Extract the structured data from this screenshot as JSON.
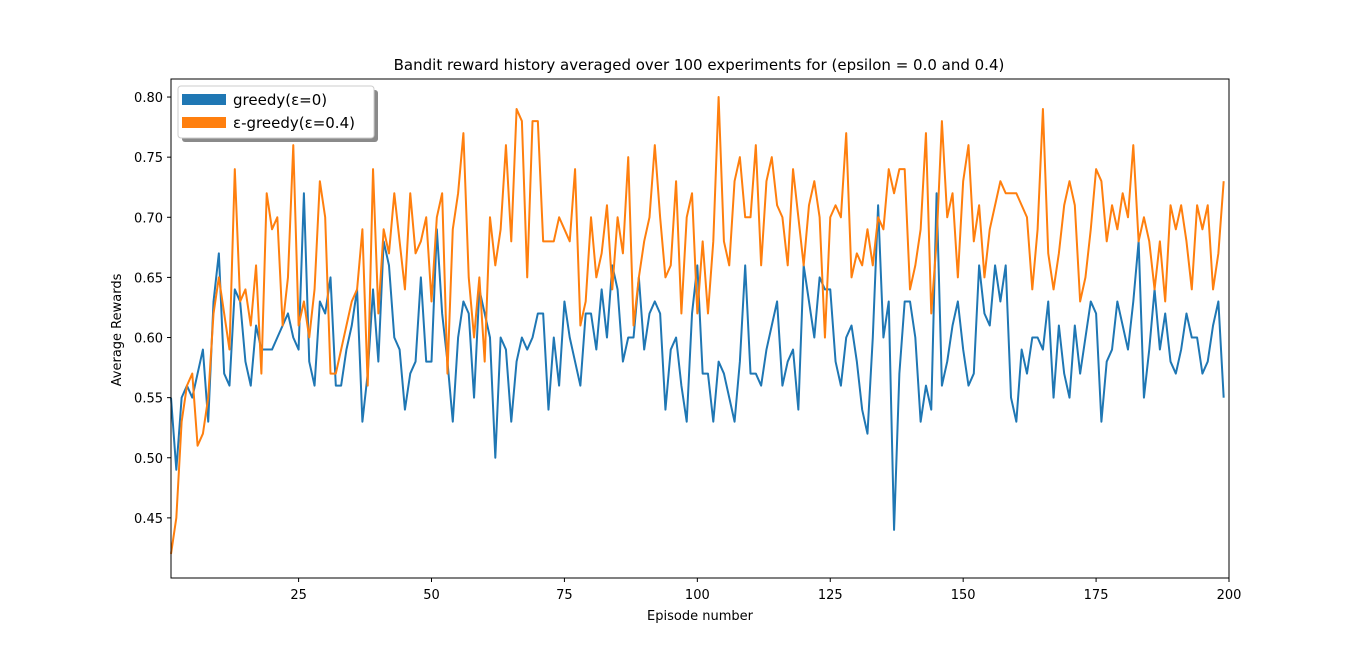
{
  "chart_data": {
    "type": "line",
    "title": "Bandit reward history averaged over 100 experiments for (epsilon = 0.0 and 0.4)",
    "xlabel": "Episode number",
    "ylabel": "Average Rewards",
    "xlim": [
      1,
      200
    ],
    "ylim": [
      0.4,
      0.815
    ],
    "xticks": [
      25,
      50,
      75,
      100,
      125,
      150,
      175,
      200
    ],
    "xtick_labels": [
      "25",
      "50",
      "75",
      "100",
      "125",
      "150",
      "175",
      "200"
    ],
    "yticks": [
      0.45,
      0.5,
      0.55,
      0.6,
      0.65,
      0.7,
      0.75,
      0.8
    ],
    "ytick_labels": [
      "0.45",
      "0.50",
      "0.55",
      "0.60",
      "0.65",
      "0.70",
      "0.75",
      "0.80"
    ],
    "grid": false,
    "legend_position": "top-left",
    "series": [
      {
        "name": "greedy(ε=0)",
        "color": "#1f77b4",
        "x_start": 1,
        "values": [
          0.55,
          0.49,
          0.55,
          0.56,
          0.55,
          0.57,
          0.59,
          0.53,
          0.63,
          0.67,
          0.57,
          0.56,
          0.64,
          0.63,
          0.58,
          0.56,
          0.61,
          0.59,
          0.59,
          0.59,
          0.6,
          0.61,
          0.62,
          0.6,
          0.59,
          0.72,
          0.58,
          0.56,
          0.63,
          0.62,
          0.65,
          0.56,
          0.56,
          0.59,
          0.61,
          0.64,
          0.53,
          0.57,
          0.64,
          0.58,
          0.68,
          0.66,
          0.6,
          0.59,
          0.54,
          0.57,
          0.58,
          0.65,
          0.58,
          0.58,
          0.69,
          0.62,
          0.58,
          0.53,
          0.6,
          0.63,
          0.62,
          0.55,
          0.64,
          0.62,
          0.6,
          0.5,
          0.6,
          0.59,
          0.53,
          0.58,
          0.6,
          0.59,
          0.6,
          0.62,
          0.62,
          0.54,
          0.6,
          0.56,
          0.63,
          0.6,
          0.58,
          0.56,
          0.62,
          0.62,
          0.59,
          0.64,
          0.6,
          0.66,
          0.64,
          0.58,
          0.6,
          0.6,
          0.65,
          0.59,
          0.62,
          0.63,
          0.62,
          0.54,
          0.59,
          0.6,
          0.56,
          0.53,
          0.62,
          0.66,
          0.57,
          0.57,
          0.53,
          0.58,
          0.57,
          0.55,
          0.53,
          0.58,
          0.66,
          0.57,
          0.57,
          0.56,
          0.59,
          0.61,
          0.63,
          0.56,
          0.58,
          0.59,
          0.54,
          0.66,
          0.63,
          0.6,
          0.65,
          0.64,
          0.64,
          0.58,
          0.56,
          0.6,
          0.61,
          0.58,
          0.54,
          0.52,
          0.6,
          0.71,
          0.6,
          0.63,
          0.44,
          0.57,
          0.63,
          0.63,
          0.6,
          0.53,
          0.56,
          0.54,
          0.72,
          0.56,
          0.58,
          0.61,
          0.63,
          0.59,
          0.56,
          0.57,
          0.66,
          0.62,
          0.61,
          0.66,
          0.63,
          0.66,
          0.55,
          0.53,
          0.59,
          0.57,
          0.6,
          0.6,
          0.59,
          0.63,
          0.55,
          0.61,
          0.57,
          0.55,
          0.61,
          0.57,
          0.6,
          0.63,
          0.62,
          0.53,
          0.58,
          0.59,
          0.63,
          0.61,
          0.59,
          0.63,
          0.68,
          0.55,
          0.59,
          0.64,
          0.59,
          0.62,
          0.58,
          0.57,
          0.59,
          0.62,
          0.6,
          0.6,
          0.57,
          0.58,
          0.61,
          0.63,
          0.55
        ]
      },
      {
        "name": "ε-greedy(ε=0.4)",
        "color": "#ff7f0e",
        "x_start": 1,
        "values": [
          0.42,
          0.45,
          0.53,
          0.56,
          0.57,
          0.51,
          0.52,
          0.55,
          0.62,
          0.65,
          0.62,
          0.59,
          0.74,
          0.63,
          0.64,
          0.61,
          0.66,
          0.57,
          0.72,
          0.69,
          0.7,
          0.61,
          0.65,
          0.76,
          0.61,
          0.63,
          0.6,
          0.64,
          0.73,
          0.7,
          0.57,
          0.57,
          0.59,
          0.61,
          0.63,
          0.64,
          0.69,
          0.56,
          0.74,
          0.62,
          0.69,
          0.67,
          0.72,
          0.68,
          0.64,
          0.72,
          0.67,
          0.68,
          0.7,
          0.63,
          0.7,
          0.72,
          0.57,
          0.69,
          0.72,
          0.77,
          0.65,
          0.6,
          0.65,
          0.58,
          0.7,
          0.66,
          0.69,
          0.76,
          0.68,
          0.79,
          0.78,
          0.65,
          0.78,
          0.78,
          0.68,
          0.68,
          0.68,
          0.7,
          0.69,
          0.68,
          0.74,
          0.61,
          0.63,
          0.7,
          0.65,
          0.67,
          0.71,
          0.64,
          0.7,
          0.67,
          0.75,
          0.61,
          0.65,
          0.68,
          0.7,
          0.76,
          0.7,
          0.65,
          0.66,
          0.73,
          0.62,
          0.7,
          0.72,
          0.62,
          0.68,
          0.62,
          0.68,
          0.8,
          0.68,
          0.66,
          0.73,
          0.75,
          0.7,
          0.7,
          0.76,
          0.66,
          0.73,
          0.75,
          0.71,
          0.7,
          0.66,
          0.74,
          0.7,
          0.66,
          0.71,
          0.73,
          0.7,
          0.6,
          0.7,
          0.71,
          0.7,
          0.77,
          0.65,
          0.67,
          0.66,
          0.69,
          0.66,
          0.7,
          0.69,
          0.74,
          0.72,
          0.74,
          0.74,
          0.64,
          0.66,
          0.69,
          0.77,
          0.62,
          0.68,
          0.78,
          0.7,
          0.72,
          0.65,
          0.73,
          0.76,
          0.68,
          0.71,
          0.65,
          0.69,
          0.71,
          0.73,
          0.72,
          0.72,
          0.72,
          0.71,
          0.7,
          0.64,
          0.69,
          0.79,
          0.67,
          0.64,
          0.67,
          0.71,
          0.73,
          0.71,
          0.63,
          0.65,
          0.69,
          0.74,
          0.73,
          0.68,
          0.71,
          0.69,
          0.72,
          0.7,
          0.76,
          0.68,
          0.7,
          0.68,
          0.64,
          0.68,
          0.63,
          0.71,
          0.69,
          0.71,
          0.68,
          0.64,
          0.71,
          0.69,
          0.71,
          0.64,
          0.67,
          0.73
        ]
      }
    ]
  }
}
